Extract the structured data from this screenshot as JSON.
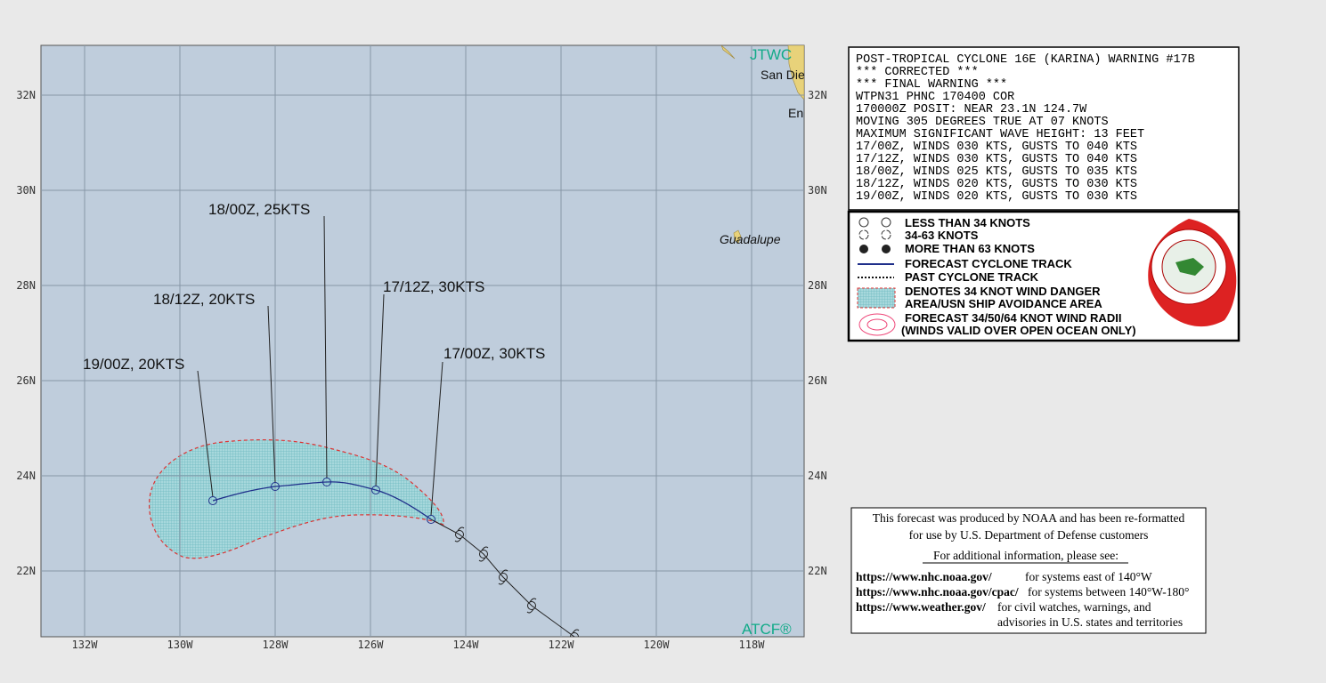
{
  "map": {
    "lat_labels": [
      "32N",
      "30N",
      "28N",
      "26N",
      "24N",
      "22N"
    ],
    "lon_labels": [
      "132W",
      "130W",
      "128W",
      "126W",
      "124W",
      "122W",
      "120W",
      "118W"
    ],
    "place_labels": [
      "JTWC",
      "San Die",
      "En",
      "Guadalupe"
    ],
    "logo": "ATCF®",
    "forecast_labels": [
      "17/00Z,  30KTS",
      "17/12Z,  30KTS",
      "18/00Z,  25KTS",
      "18/12Z,  20KTS",
      "19/00Z,  20KTS"
    ]
  },
  "warning": {
    "lines": [
      "POST-TROPICAL CYCLONE 16E (KARINA) WARNING #17B",
      "*** CORRECTED ***",
      "*** FINAL WARNING ***",
      "WTPN31 PHNC 170400 COR",
      "170000Z POSIT: NEAR 23.1N 124.7W",
      "MOVING 305 DEGREES TRUE AT 07 KNOTS",
      "MAXIMUM SIGNIFICANT WAVE HEIGHT: 13 FEET",
      "17/00Z, WINDS 030 KTS, GUSTS TO 040 KTS",
      "17/12Z, WINDS 030 KTS, GUSTS TO 040 KTS",
      "18/00Z, WINDS 025 KTS, GUSTS TO 035 KTS",
      "18/12Z, WINDS 020 KTS, GUSTS TO 030 KTS",
      "19/00Z, WINDS 020 KTS, GUSTS TO 030 KTS"
    ]
  },
  "legend": {
    "items": [
      "LESS THAN 34 KNOTS",
      "34-63 KNOTS",
      "MORE THAN 63 KNOTS",
      "FORECAST CYCLONE TRACK",
      "PAST CYCLONE TRACK",
      "DENOTES 34 KNOT WIND DANGER",
      "AREA/USN SHIP AVOIDANCE AREA",
      "FORECAST 34/50/64 KNOT WIND RADII",
      "(WINDS VALID OVER OPEN OCEAN ONLY)"
    ]
  },
  "disclaimer": {
    "intro": [
      "This forecast was produced by NOAA and has been re-formatted",
      "for use by U.S. Department of Defense customers"
    ],
    "see": "For additional information, please see:",
    "links": [
      {
        "url": "https://www.nhc.noaa.gov/",
        "desc": "for systems east of 140°W"
      },
      {
        "url": "https://www.nhc.noaa.gov/cpac/",
        "desc": "for systems between 140°W-180°"
      },
      {
        "url": "https://www.weather.gov/",
        "desc": "for civil watches, warnings, and"
      }
    ],
    "tail": "advisories in U.S. states and territories"
  }
}
